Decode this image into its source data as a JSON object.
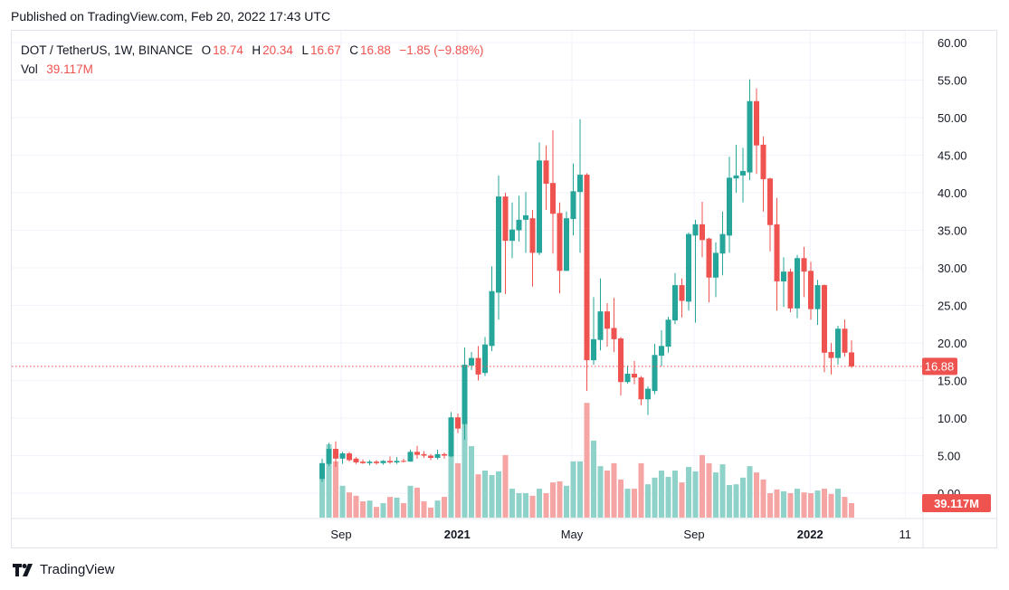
{
  "published": "Published on TradingView.com, Feb 20, 2022 17:43 UTC",
  "legend": {
    "symbol": "DOT / TetherUS, 1W, BINANCE",
    "o_label": "O",
    "o": "18.74",
    "h_label": "H",
    "h": "20.34",
    "l_label": "L",
    "l": "16.67",
    "c_label": "C",
    "c": "16.88",
    "change": "−1.85 (−9.88%)",
    "vol_label": "Vol",
    "vol": "39.117M"
  },
  "footer": {
    "brand": "TradingView"
  },
  "colors": {
    "up": "#26a69a",
    "down": "#ef5350",
    "up_vol": "#8fd2c9",
    "down_vol": "#f5a5a3",
    "grid": "#f0f3fa"
  },
  "chart_data": {
    "type": "candlestick",
    "title": "DOT / TetherUS, 1W, BINANCE",
    "ylim": [
      0,
      60
    ],
    "yticks": [
      "0.00",
      "5.00",
      "10.00",
      "15.00",
      "20.00",
      "25.00",
      "30.00",
      "35.00",
      "40.00",
      "45.00",
      "50.00",
      "55.00",
      "60.00"
    ],
    "xticks": [
      {
        "label": "Sep",
        "at": 2.8
      },
      {
        "label": "2021",
        "at": 19.9
      },
      {
        "label": "May",
        "at": 36.8
      },
      {
        "label": "Sep",
        "at": 54.8
      },
      {
        "label": "2022",
        "at": 71.9
      },
      {
        "label": "11",
        "at": 85.9
      }
    ],
    "last_price": "16.88",
    "last_volume": "39.117M",
    "ohlc": [
      [
        1.9,
        4.6,
        1.5,
        4.0
      ],
      [
        3.9,
        6.7,
        3.6,
        5.9
      ],
      [
        5.9,
        6.9,
        3.5,
        4.6
      ],
      [
        4.6,
        5.5,
        3.9,
        5.3
      ],
      [
        5.3,
        5.5,
        4.2,
        4.4
      ],
      [
        4.6,
        4.8,
        3.9,
        4.1
      ],
      [
        4.2,
        4.5,
        3.9,
        4.0
      ],
      [
        4.0,
        4.4,
        3.7,
        4.2
      ],
      [
        4.2,
        4.4,
        3.8,
        4.0
      ],
      [
        4.0,
        4.4,
        3.8,
        4.3
      ],
      [
        4.3,
        4.9,
        3.9,
        4.1
      ],
      [
        4.1,
        4.8,
        3.9,
        4.3
      ],
      [
        4.3,
        4.6,
        4.1,
        4.2
      ],
      [
        4.2,
        5.8,
        4.2,
        5.5
      ],
      [
        5.5,
        6.3,
        4.6,
        5.1
      ],
      [
        5.2,
        5.6,
        4.7,
        5.0
      ],
      [
        5.0,
        5.2,
        4.4,
        4.7
      ],
      [
        4.7,
        5.8,
        4.5,
        5.2
      ],
      [
        5.2,
        5.4,
        4.6,
        5.0
      ],
      [
        4.9,
        10.8,
        4.8,
        10.1
      ],
      [
        10.1,
        10.6,
        8.0,
        8.6
      ],
      [
        9.2,
        19.4,
        7.1,
        17.1
      ],
      [
        17.0,
        18.8,
        16.4,
        18.0
      ],
      [
        18.0,
        19.6,
        15.0,
        15.8
      ],
      [
        16.0,
        20.8,
        15.6,
        19.8
      ],
      [
        19.6,
        30.2,
        18.9,
        26.9
      ],
      [
        26.7,
        42.3,
        23.1,
        39.5
      ],
      [
        39.5,
        40.0,
        26.5,
        33.6
      ],
      [
        33.6,
        38.7,
        31.3,
        35.1
      ],
      [
        35.0,
        39.6,
        33.5,
        36.4
      ],
      [
        36.4,
        40.1,
        32.0,
        37.0
      ],
      [
        36.6,
        37.7,
        27.5,
        32.0
      ],
      [
        32.0,
        46.7,
        31.7,
        44.3
      ],
      [
        44.3,
        46.3,
        37.7,
        41.2
      ],
      [
        41.3,
        48.3,
        31.9,
        37.2
      ],
      [
        37.3,
        38.7,
        26.6,
        29.6
      ],
      [
        29.6,
        37.5,
        29.6,
        36.6
      ],
      [
        36.5,
        43.9,
        34.3,
        40.2
      ],
      [
        40.1,
        49.8,
        32.0,
        42.4
      ],
      [
        42.4,
        42.6,
        13.6,
        17.7
      ],
      [
        17.7,
        26.1,
        17.1,
        20.5
      ],
      [
        20.4,
        28.6,
        19.0,
        24.2
      ],
      [
        24.2,
        25.3,
        19.5,
        21.9
      ],
      [
        22.0,
        26.0,
        18.8,
        20.5
      ],
      [
        20.6,
        20.8,
        13.0,
        14.8
      ],
      [
        14.8,
        17.0,
        14.6,
        15.9
      ],
      [
        15.9,
        17.6,
        14.5,
        15.4
      ],
      [
        15.4,
        15.6,
        11.7,
        12.5
      ],
      [
        12.5,
        14.2,
        10.4,
        13.9
      ],
      [
        13.6,
        19.9,
        13.2,
        18.4
      ],
      [
        18.3,
        21.7,
        16.9,
        19.6
      ],
      [
        19.5,
        23.5,
        18.7,
        23.1
      ],
      [
        23.0,
        29.3,
        22.5,
        27.7
      ],
      [
        27.7,
        28.6,
        23.4,
        25.6
      ],
      [
        25.5,
        34.7,
        24.3,
        34.5
      ],
      [
        34.3,
        36.4,
        22.7,
        35.8
      ],
      [
        35.8,
        38.8,
        31.4,
        33.7
      ],
      [
        33.9,
        34.0,
        25.4,
        28.7
      ],
      [
        28.7,
        33.4,
        26.1,
        32.0
      ],
      [
        31.9,
        37.5,
        29.0,
        34.5
      ],
      [
        34.3,
        44.8,
        32.0,
        42.0
      ],
      [
        41.9,
        46.4,
        40.0,
        42.3
      ],
      [
        42.3,
        46.0,
        38.7,
        42.9
      ],
      [
        42.7,
        55.1,
        41.7,
        52.2
      ],
      [
        52.2,
        53.9,
        42.5,
        46.3
      ],
      [
        46.4,
        47.5,
        37.5,
        41.8
      ],
      [
        41.9,
        42.0,
        32.2,
        35.7
      ],
      [
        35.8,
        39.3,
        24.3,
        28.2
      ],
      [
        28.2,
        31.4,
        24.8,
        29.5
      ],
      [
        29.5,
        29.9,
        24.1,
        24.6
      ],
      [
        24.6,
        31.7,
        23.3,
        31.3
      ],
      [
        31.3,
        32.8,
        26.1,
        29.5
      ],
      [
        29.6,
        30.8,
        23.1,
        24.5
      ],
      [
        24.5,
        28.4,
        22.4,
        27.7
      ],
      [
        27.7,
        27.8,
        16.1,
        18.7
      ],
      [
        18.8,
        20.0,
        15.8,
        18.0
      ],
      [
        18.0,
        22.3,
        17.1,
        21.9
      ],
      [
        21.9,
        23.1,
        18.2,
        18.7
      ],
      [
        18.74,
        20.34,
        16.67,
        16.88
      ]
    ],
    "volume_millions": [
      108,
      198,
      152,
      86,
      68,
      59,
      44,
      46,
      29,
      39,
      56,
      54,
      39,
      86,
      81,
      44,
      27,
      46,
      56,
      257,
      147,
      328,
      193,
      117,
      127,
      115,
      125,
      169,
      78,
      66,
      66,
      59,
      78,
      66,
      95,
      98,
      86,
      152,
      152,
      310,
      208,
      139,
      127,
      147,
      103,
      78,
      78,
      147,
      90,
      108,
      127,
      110,
      127,
      95,
      137,
      125,
      169,
      147,
      122,
      144,
      88,
      90,
      108,
      139,
      122,
      103,
      66,
      76,
      71,
      66,
      78,
      68,
      66,
      73,
      78,
      64,
      78,
      56,
      39.117
    ]
  }
}
